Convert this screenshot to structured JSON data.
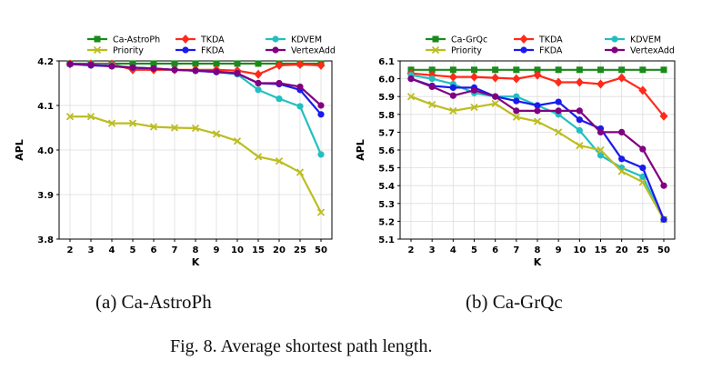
{
  "figure": {
    "caption": "Fig. 8.  Average shortest path length.",
    "subcaptions": [
      "(a)  Ca-AstroPh",
      "(b)  Ca-GrQc"
    ]
  },
  "chart_data": [
    {
      "type": "line",
      "xlabel": "K",
      "ylabel": "APL",
      "categories": [
        "2",
        "3",
        "4",
        "5",
        "6",
        "7",
        "8",
        "9",
        "10",
        "15",
        "20",
        "25",
        "50"
      ],
      "ylim": [
        3.8,
        4.2
      ],
      "yticks": [
        "3.8",
        "3.9",
        "4.0",
        "4.1",
        "4.2"
      ],
      "legend": {
        "placement": "top",
        "columns": 3
      },
      "series": [
        {
          "name": "Ca-AstroPh",
          "color": "#1a8a1a",
          "marker": "square",
          "values": [
            4.194,
            4.194,
            4.194,
            4.194,
            4.194,
            4.194,
            4.194,
            4.194,
            4.194,
            4.194,
            4.194,
            4.194,
            4.194
          ]
        },
        {
          "name": "TKDA",
          "color": "#ff2a1a",
          "marker": "diamond",
          "values": [
            4.193,
            4.193,
            4.193,
            4.18,
            4.18,
            4.18,
            4.18,
            4.18,
            4.178,
            4.17,
            4.19,
            4.192,
            4.19
          ]
        },
        {
          "name": "KDVEM",
          "color": "#22bfc0",
          "marker": "circle",
          "values": [
            4.193,
            4.193,
            4.19,
            4.185,
            4.183,
            4.18,
            4.178,
            4.175,
            4.17,
            4.135,
            4.115,
            4.098,
            3.99
          ]
        },
        {
          "name": "Priority",
          "color": "#bcbd22",
          "marker": "x",
          "values": [
            4.075,
            4.075,
            4.06,
            4.06,
            4.052,
            4.05,
            4.049,
            4.036,
            4.02,
            3.985,
            3.975,
            3.95,
            3.86
          ]
        },
        {
          "name": "FKDA",
          "color": "#1a1aee",
          "marker": "circle",
          "values": [
            4.193,
            4.19,
            4.188,
            4.185,
            4.183,
            4.18,
            4.178,
            4.175,
            4.172,
            4.15,
            4.148,
            4.135,
            4.08
          ]
        },
        {
          "name": "VertexAdd",
          "color": "#800080",
          "marker": "circle",
          "values": [
            4.193,
            4.192,
            4.188,
            4.185,
            4.183,
            4.18,
            4.178,
            4.176,
            4.172,
            4.15,
            4.15,
            4.142,
            4.1
          ]
        }
      ]
    },
    {
      "type": "line",
      "xlabel": "K",
      "ylabel": "APL",
      "categories": [
        "2",
        "3",
        "4",
        "5",
        "6",
        "7",
        "8",
        "9",
        "10",
        "15",
        "20",
        "25",
        "50"
      ],
      "ylim": [
        5.1,
        6.1
      ],
      "yticks": [
        "5.1",
        "5.2",
        "5.3",
        "5.4",
        "5.5",
        "5.6",
        "5.7",
        "5.8",
        "5.9",
        "6.0",
        "6.1"
      ],
      "legend": {
        "placement": "top",
        "columns": 3
      },
      "series": [
        {
          "name": "Ca-GrQc",
          "color": "#1a8a1a",
          "marker": "square",
          "values": [
            6.05,
            6.05,
            6.05,
            6.05,
            6.05,
            6.05,
            6.05,
            6.05,
            6.05,
            6.05,
            6.05,
            6.05,
            6.05
          ]
        },
        {
          "name": "TKDA",
          "color": "#ff2a1a",
          "marker": "diamond",
          "values": [
            6.03,
            6.02,
            6.01,
            6.01,
            6.005,
            6.0,
            6.02,
            5.98,
            5.98,
            5.97,
            6.005,
            5.935,
            5.79
          ]
        },
        {
          "name": "KDVEM",
          "color": "#22bfc0",
          "marker": "circle",
          "values": [
            6.02,
            6.0,
            5.97,
            5.92,
            5.9,
            5.9,
            5.85,
            5.8,
            5.71,
            5.57,
            5.5,
            5.45,
            5.21
          ]
        },
        {
          "name": "Priority",
          "color": "#bcbd22",
          "marker": "x",
          "values": [
            5.9,
            5.855,
            5.82,
            5.84,
            5.86,
            5.785,
            5.76,
            5.7,
            5.625,
            5.6,
            5.48,
            5.42,
            5.21
          ]
        },
        {
          "name": "FKDA",
          "color": "#1a1aee",
          "marker": "circle",
          "values": [
            6.0,
            5.96,
            5.95,
            5.95,
            5.9,
            5.875,
            5.85,
            5.87,
            5.77,
            5.72,
            5.55,
            5.5,
            5.21
          ]
        },
        {
          "name": "VertexAdd",
          "color": "#800080",
          "marker": "circle",
          "values": [
            6.0,
            5.955,
            5.905,
            5.935,
            5.9,
            5.82,
            5.82,
            5.82,
            5.82,
            5.7,
            5.7,
            5.605,
            5.4
          ]
        }
      ]
    }
  ]
}
